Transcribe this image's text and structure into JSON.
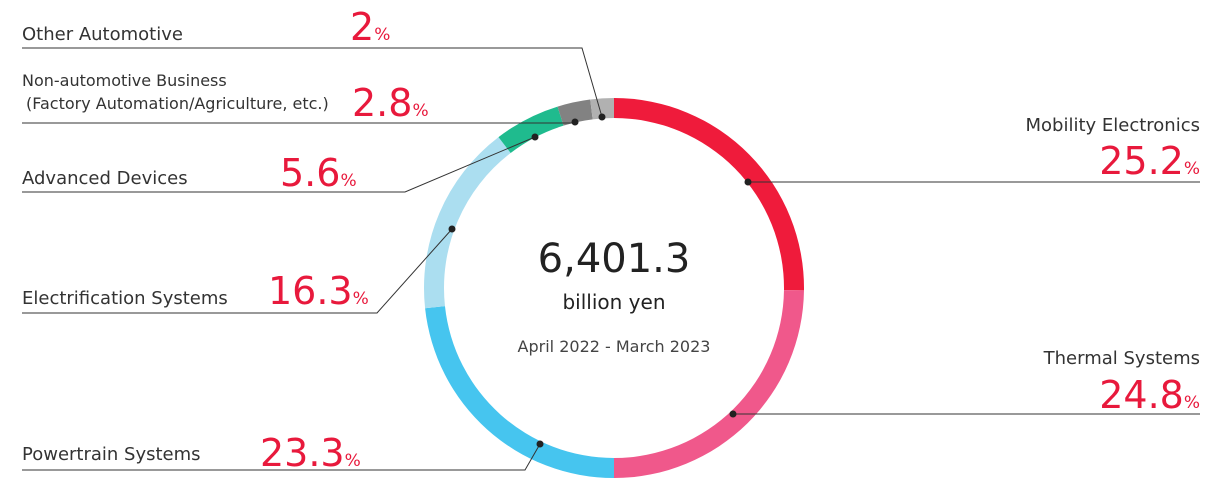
{
  "chart_data": {
    "type": "donut",
    "categories": [
      "Mobility Electronics",
      "Thermal Systems",
      "Powertrain Systems",
      "Electrification Systems",
      "Advanced Devices",
      "Non-automotive Business\n(Factory Automation/Agriculture, etc.)",
      "Other Automotive"
    ],
    "values": [
      25.2,
      24.8,
      23.3,
      16.3,
      5.6,
      2.8,
      2.0
    ],
    "unit": "%",
    "colors": [
      "#ef1b3b",
      "#f0588b",
      "#46c5ef",
      "#abdef0",
      "#1fbb8e",
      "#828282",
      "#b1b1b1"
    ],
    "center_value": "6,401.3",
    "center_unit": "billion yen",
    "period": "April 2022 - March 2023"
  }
}
